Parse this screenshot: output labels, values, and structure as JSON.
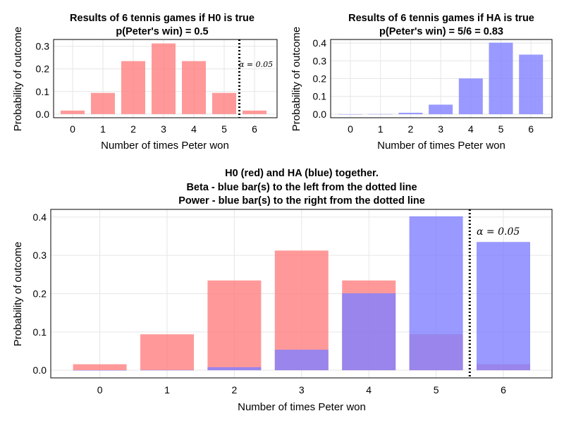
{
  "chart_data": [
    {
      "type": "bar",
      "title_lines": [
        "Results of 6 tennis games if H0 is true",
        "p(Peter's win) = 0.5"
      ],
      "xlabel": "Number of times Peter won",
      "ylabel": "Probability of outcome",
      "categories": [
        "0",
        "1",
        "2",
        "3",
        "4",
        "5",
        "6"
      ],
      "series": [
        {
          "name": "H0",
          "color": "#ff8080",
          "values": [
            0.0156,
            0.0938,
            0.2344,
            0.3125,
            0.2344,
            0.0938,
            0.0156
          ]
        }
      ],
      "ylim": [
        -0.016,
        0.33
      ],
      "yticks": [
        "0.0",
        "0.1",
        "0.2",
        "0.3"
      ],
      "yticks_values": [
        0.0,
        0.1,
        0.2,
        0.3
      ],
      "cutoff_x": 5.5,
      "annotation": "α = 0.05",
      "grid": true
    },
    {
      "type": "bar",
      "title_lines": [
        "Results of 6 tennis games if HA is true",
        "p(Peter's win) = 5/6 = 0.83"
      ],
      "xlabel": "Number of times Peter won",
      "ylabel": "Probability of outcome",
      "categories": [
        "0",
        "1",
        "2",
        "3",
        "4",
        "5",
        "6"
      ],
      "series": [
        {
          "name": "HA",
          "color": "#8080ff",
          "values": [
            2e-05,
            0.0006,
            0.008,
            0.0536,
            0.2009,
            0.4019,
            0.3349
          ]
        }
      ],
      "ylim": [
        -0.02,
        0.42
      ],
      "yticks": [
        "0.0",
        "0.1",
        "0.2",
        "0.3",
        "0.4"
      ],
      "yticks_values": [
        0.0,
        0.1,
        0.2,
        0.3,
        0.4
      ],
      "grid": true
    },
    {
      "type": "bar",
      "title_lines": [
        "H0 (red) and HA (blue) together.",
        "Beta - blue bar(s) to the left from the dotted line",
        "Power - blue bar(s) to the right from the dotted line"
      ],
      "xlabel": "Number of times Peter won",
      "ylabel": "Probability of outcome",
      "categories": [
        "0",
        "1",
        "2",
        "3",
        "4",
        "5",
        "6"
      ],
      "series": [
        {
          "name": "H0 (red)",
          "color": "#ff8080",
          "values": [
            0.0156,
            0.0938,
            0.2344,
            0.3125,
            0.2344,
            0.0938,
            0.0156
          ]
        },
        {
          "name": "HA (blue)",
          "color": "#8080ff",
          "values": [
            2e-05,
            0.0006,
            0.008,
            0.0536,
            0.2009,
            0.4019,
            0.3349
          ]
        }
      ],
      "ylim": [
        -0.02,
        0.42
      ],
      "yticks": [
        "0.0",
        "0.1",
        "0.2",
        "0.3",
        "0.4"
      ],
      "yticks_values": [
        0.0,
        0.1,
        0.2,
        0.3,
        0.4
      ],
      "cutoff_x": 5.5,
      "annotation": "α = 0.05",
      "grid": true
    }
  ]
}
